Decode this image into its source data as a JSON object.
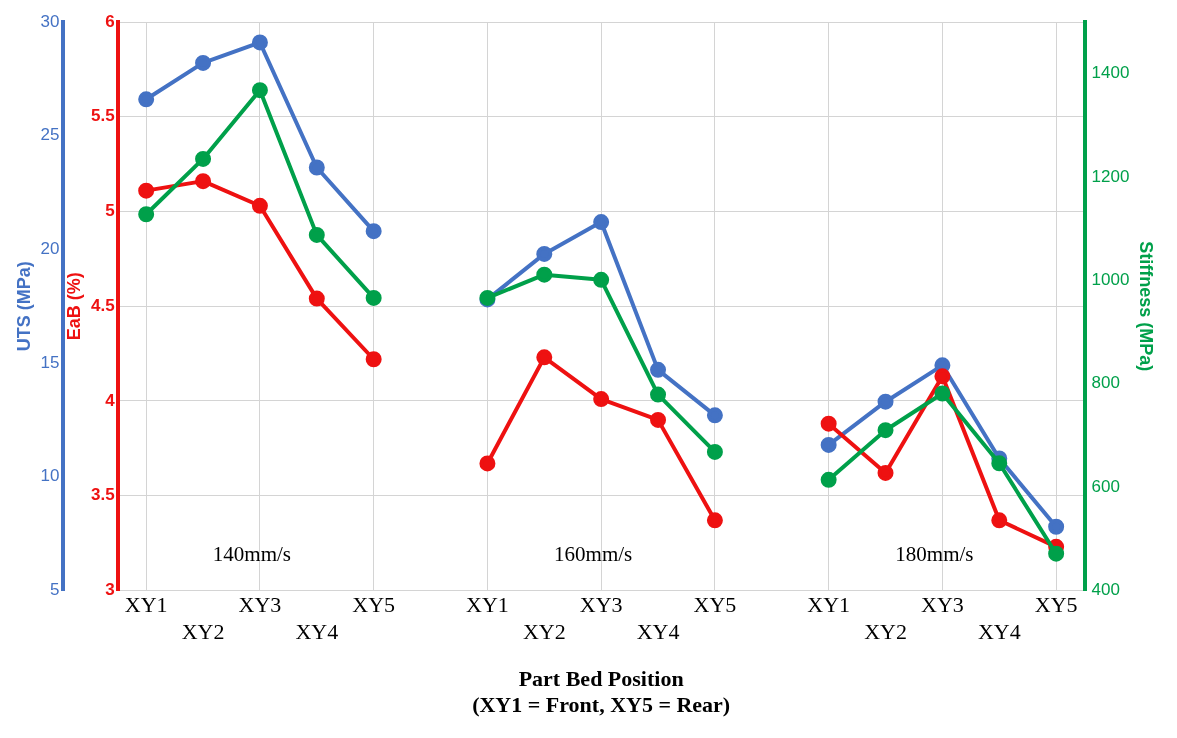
{
  "chart_data": {
    "type": "line",
    "categories": [
      "XY1",
      "XY2",
      "XY3",
      "XY4",
      "XY5",
      null,
      "XY1",
      "XY2",
      "XY3",
      "XY4",
      "XY5",
      null,
      "XY1",
      "XY2",
      "XY3",
      "XY4",
      "XY5"
    ],
    "series": [
      {
        "color": "#4472c4",
        "axis": "y3",
        "values": [
          26.6,
          28.2,
          29.1,
          23.6,
          20.8,
          null,
          17.8,
          19.8,
          21.2,
          14.7,
          12.7,
          null,
          11.4,
          13.3,
          14.9,
          10.8,
          7.8
        ]
      },
      {
        "color": "#ee1111",
        "axis": "y",
        "values": [
          5.11,
          5.16,
          5.03,
          4.54,
          4.22,
          null,
          3.67,
          4.23,
          4.01,
          3.9,
          3.37,
          null,
          3.88,
          3.62,
          4.13,
          3.37,
          3.23
        ]
      },
      {
        "color": "#00a04a",
        "axis": "y2",
        "values": [
          1128,
          1235,
          1368,
          1088,
          966,
          null,
          966,
          1011,
          1001,
          779,
          668,
          null,
          614,
          710,
          781,
          646,
          471
        ]
      }
    ],
    "xlabel": "Part Bed Position\n(XY1 = Front, XY5 = Rear)",
    "ylabel": "EaB (%)",
    "y2label": "Stiffness (MPa)",
    "y3label": "UTS (MPa)",
    "ylim": [
      3,
      6
    ],
    "yticks": [
      3,
      3.5,
      4,
      4.5,
      5,
      5.5,
      6
    ],
    "y2lim": [
      400,
      1500
    ],
    "y2ticks": [
      400,
      600,
      800,
      1000,
      1200,
      1400
    ],
    "y3lim": [
      5,
      30
    ],
    "y3ticks": [
      5,
      10,
      15,
      20,
      25,
      30
    ],
    "annotations": [
      "140mm/s",
      "160mm/s",
      "180mm/s"
    ],
    "grid": true,
    "legend": false,
    "marker": "circle",
    "line_style": "solid"
  }
}
